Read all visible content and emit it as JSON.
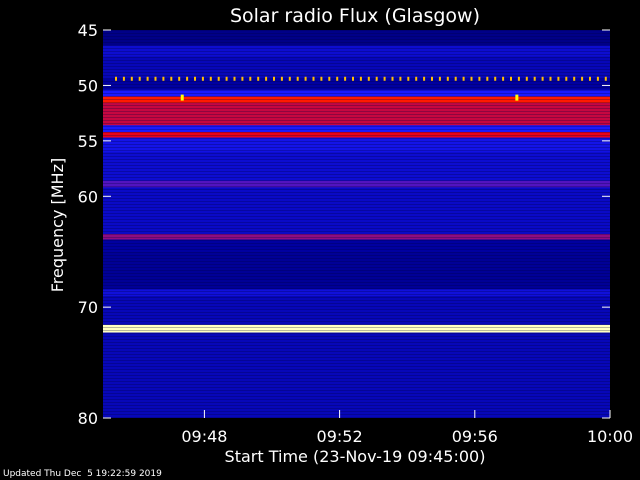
{
  "chart_data": {
    "type": "heatmap",
    "title": "Solar radio Flux (Glasgow)",
    "xlabel": "Start Time (23-Nov-19 09:45:00)",
    "ylabel": "Frequency [MHz]",
    "x_range": [
      "09:45",
      "10:00"
    ],
    "y_range": [
      45,
      80
    ],
    "x_ticks": [
      "09:48",
      "09:52",
      "09:56",
      "10:00"
    ],
    "x_tick_minutes": [
      48,
      52,
      56,
      60
    ],
    "y_ticks": [
      45,
      50,
      55,
      60,
      70,
      80
    ],
    "color_scale": [
      "#000040",
      "#0000a0",
      "#1a1aff",
      "#ff0000",
      "#ffff00",
      "#ffffff"
    ],
    "bands": [
      {
        "from": 45.0,
        "to": 46.4,
        "level": 0.15
      },
      {
        "from": 46.4,
        "to": 47.4,
        "level": 0.3
      },
      {
        "from": 47.4,
        "to": 49.4,
        "level": 0.25
      },
      {
        "from": 49.4,
        "to": 50.4,
        "level": 0.2
      },
      {
        "from": 50.4,
        "to": 51.0,
        "level": 0.4
      },
      {
        "from": 51.0,
        "to": 51.6,
        "level": 0.62
      },
      {
        "from": 51.6,
        "to": 53.6,
        "level": 0.55
      },
      {
        "from": 53.6,
        "to": 54.2,
        "level": 0.4
      },
      {
        "from": 54.2,
        "to": 54.7,
        "level": 0.58
      },
      {
        "from": 54.7,
        "to": 56.0,
        "level": 0.35
      },
      {
        "from": 56.0,
        "to": 58.6,
        "level": 0.3
      },
      {
        "from": 58.6,
        "to": 59.2,
        "level": 0.45
      },
      {
        "from": 59.2,
        "to": 63.4,
        "level": 0.28
      },
      {
        "from": 63.4,
        "to": 63.9,
        "level": 0.5
      },
      {
        "from": 63.9,
        "to": 65.0,
        "level": 0.2
      },
      {
        "from": 65.0,
        "to": 68.4,
        "level": 0.18
      },
      {
        "from": 68.4,
        "to": 69.0,
        "level": 0.32
      },
      {
        "from": 69.0,
        "to": 71.6,
        "level": 0.25
      },
      {
        "from": 71.6,
        "to": 72.3,
        "level": 0.95
      },
      {
        "from": 72.3,
        "to": 80.0,
        "level": 0.25
      }
    ],
    "dotted_line": {
      "freq": 49.4,
      "level": 0.75
    },
    "spikes": [
      {
        "minute": 47.3,
        "freq": 51.1,
        "level": 0.8
      },
      {
        "minute": 57.2,
        "freq": 51.1,
        "level": 0.8
      }
    ]
  },
  "footer": "Updated Thu Dec  5 19:22:59 2019"
}
